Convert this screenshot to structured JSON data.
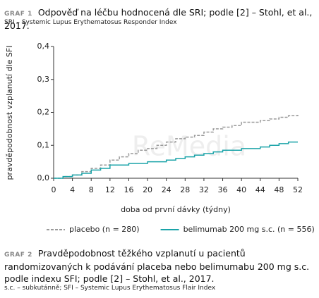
{
  "header": {
    "label": "GRAF 1",
    "title": "Odpověď na léčbu hodnocená dle SRI; podle [2] – Stohl, et al., 2017.",
    "subtitle": "SRI – Systemic Lupus Erythematosus Responder Index"
  },
  "chart_data": {
    "type": "line",
    "step": true,
    "y_label": "pravděpodobnost vzplanutí dle SFI",
    "x_label": "doba od první dávky (týdny)",
    "watermark": "ReMedia",
    "x": [
      0,
      2,
      4,
      6,
      8,
      10,
      12,
      14,
      16,
      18,
      20,
      22,
      24,
      26,
      28,
      30,
      32,
      34,
      36,
      38,
      40,
      42,
      44,
      46,
      48,
      50,
      52
    ],
    "series": [
      {
        "name": "placebo (n = 280)",
        "color": "#9a9a9a",
        "dashed": true,
        "values": [
          0,
          0.005,
          0.01,
          0.02,
          0.03,
          0.04,
          0.055,
          0.065,
          0.075,
          0.085,
          0.09,
          0.1,
          0.11,
          0.12,
          0.125,
          0.13,
          0.14,
          0.15,
          0.155,
          0.16,
          0.17,
          0.17,
          0.175,
          0.18,
          0.185,
          0.19,
          0.195
        ]
      },
      {
        "name": "belimumab 200 mg s.c. (n = 556)",
        "color": "#1aa3a8",
        "dashed": false,
        "values": [
          0,
          0.005,
          0.01,
          0.015,
          0.025,
          0.03,
          0.04,
          0.04,
          0.045,
          0.045,
          0.05,
          0.05,
          0.055,
          0.06,
          0.065,
          0.07,
          0.075,
          0.08,
          0.085,
          0.085,
          0.09,
          0.09,
          0.095,
          0.1,
          0.105,
          0.11,
          0.11
        ]
      }
    ],
    "xlim": [
      0,
      52
    ],
    "xticks": [
      0,
      4,
      8,
      12,
      16,
      20,
      24,
      28,
      32,
      36,
      40,
      44,
      48,
      52
    ],
    "ylim": [
      0,
      0.4
    ],
    "yticks": [
      {
        "value": 0,
        "label": "0,0"
      },
      {
        "value": 0.1,
        "label": "0,1"
      },
      {
        "value": 0.2,
        "label": "0,2"
      },
      {
        "value": 0.3,
        "label": "0,3"
      },
      {
        "value": 0.4,
        "label": "0,4"
      }
    ]
  },
  "caption2": {
    "label": "GRAF 2",
    "text": "Pravděpodobnost těžkého vzplanutí u pacientů randomizovaných k podávání placeba nebo belimumabu 200 mg s.c. podle indexu SFI; podle [2] – Stohl, et al., 2017.",
    "note": "s.c. – subkutánně; SFI – Systemic Lupus Erythematosus Flair Index"
  }
}
